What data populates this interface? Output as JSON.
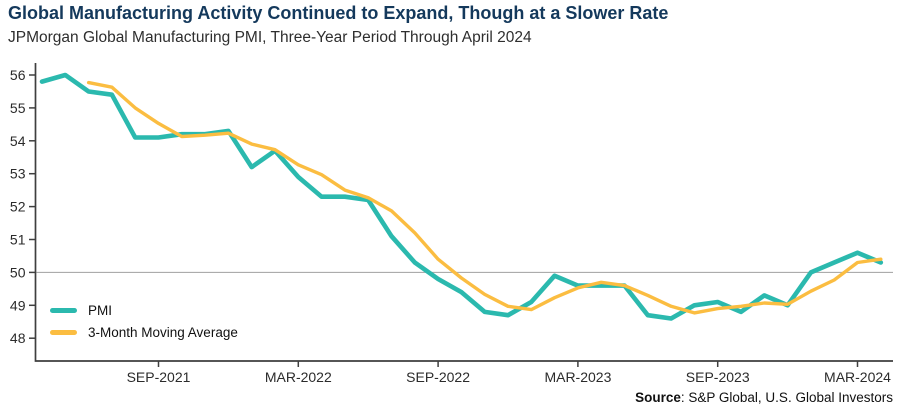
{
  "header": {
    "title": "Global Manufacturing Activity Continued to Expand, Though at a Slower Rate",
    "subtitle": "JPMorgan Global Manufacturing PMI, Three-Year Period Through April 2024"
  },
  "legend": [
    {
      "name": "PMI",
      "color": "#2BB9AE"
    },
    {
      "name": "3-Month Moving Average",
      "color": "#FBBD41"
    }
  ],
  "source": {
    "label_bold": "Source",
    "label_rest": ": S&P Global, U.S. Global Investors"
  },
  "colors": {
    "pmi_line": "#2BB9AE",
    "ma_line": "#FBBD41",
    "title_text": "#14395C",
    "axis_line": "#3f3f3f",
    "tick_text": "#2b2b2b",
    "gridline": "#a0a0a0"
  },
  "chart_data": {
    "type": "line",
    "title": "Global Manufacturing Activity Continued to Expand, Though at a Slower Rate",
    "subtitle": "JPMorgan Global Manufacturing PMI, Three-Year Period Through April 2024",
    "x": [
      "APR-2021",
      "MAY-2021",
      "JUN-2021",
      "JUL-2021",
      "AUG-2021",
      "SEP-2021",
      "OCT-2021",
      "NOV-2021",
      "DEC-2021",
      "JAN-2022",
      "FEB-2022",
      "MAR-2022",
      "APR-2022",
      "MAY-2022",
      "JUN-2022",
      "JUL-2022",
      "AUG-2022",
      "SEP-2022",
      "OCT-2022",
      "NOV-2022",
      "DEC-2022",
      "JAN-2023",
      "FEB-2023",
      "MAR-2023",
      "APR-2023",
      "MAY-2023",
      "JUN-2023",
      "JUL-2023",
      "AUG-2023",
      "SEP-2023",
      "OCT-2023",
      "NOV-2023",
      "DEC-2023",
      "JAN-2024",
      "FEB-2024",
      "MAR-2024",
      "APR-2024"
    ],
    "series": [
      {
        "name": "PMI",
        "values": [
          55.8,
          56.0,
          55.5,
          55.4,
          54.1,
          54.1,
          54.2,
          54.2,
          54.3,
          53.2,
          53.7,
          52.9,
          52.3,
          52.3,
          52.2,
          51.1,
          50.3,
          49.8,
          49.4,
          48.8,
          48.7,
          49.1,
          49.9,
          49.6,
          49.6,
          49.6,
          48.7,
          48.6,
          49.0,
          49.1,
          48.8,
          49.3,
          49.0,
          50.0,
          50.3,
          50.6,
          50.3
        ]
      },
      {
        "name": "3-Month Moving Average",
        "values": [
          null,
          null,
          55.77,
          55.63,
          55.0,
          54.53,
          54.13,
          54.17,
          54.23,
          53.9,
          53.73,
          53.27,
          52.97,
          52.5,
          52.27,
          51.87,
          51.2,
          50.4,
          49.83,
          49.33,
          48.97,
          48.87,
          49.23,
          49.53,
          49.7,
          49.6,
          49.3,
          48.97,
          48.77,
          48.9,
          48.97,
          49.07,
          49.03,
          49.43,
          49.77,
          50.3,
          50.4
        ]
      }
    ],
    "x_tick_labels": [
      "SEP-2021",
      "MAR-2022",
      "SEP-2022",
      "MAR-2023",
      "SEP-2023",
      "MAR-2024"
    ],
    "x_tick_indices": [
      5,
      11,
      17,
      23,
      29,
      35
    ],
    "y_ticks": [
      48,
      49,
      50,
      51,
      52,
      53,
      54,
      55,
      56
    ],
    "ylim": [
      47.3,
      56.4
    ],
    "gridline_at": 50,
    "grid": "horizontal line at 50 only",
    "legend_position": "bottom-left inside plot",
    "xlabel": "",
    "ylabel": ""
  }
}
